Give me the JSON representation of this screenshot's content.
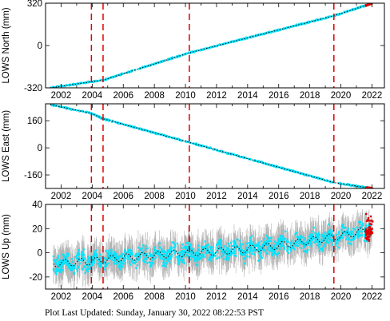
{
  "footer": {
    "label": "Plot Last Updated:",
    "value": "Sunday, January 30, 2022 08:22:53 PST"
  },
  "colors": {
    "data": "#00e5ff",
    "model": "#000000",
    "error_bar": "#b4b4b4",
    "event_line": "#e00000",
    "recent": "#e00000"
  },
  "chart_data": [
    {
      "type": "scatter",
      "ylabel": "LOWS North (mm)",
      "xlim": [
        2001.0,
        2022.8
      ],
      "ylim": [
        -320,
        320
      ],
      "yticks": [
        -320,
        0,
        320
      ],
      "xticks": [
        2002,
        2004,
        2006,
        2008,
        2010,
        2012,
        2014,
        2016,
        2018,
        2020,
        2022
      ],
      "event_lines": [
        2003.95,
        2004.7,
        2010.25,
        2019.55
      ],
      "series": [
        {
          "values": [
            {
              "x": 2001.3,
              "y": -320
            },
            {
              "x": 2003.9,
              "y": -275
            },
            {
              "x": 2004.7,
              "y": -262
            },
            {
              "x": 2010.25,
              "y": -55
            },
            {
              "x": 2019.55,
              "y": 225
            },
            {
              "x": 2022.0,
              "y": 318
            }
          ]
        }
      ],
      "grid": false
    },
    {
      "type": "scatter",
      "ylabel": "LOWS East (mm)",
      "xlim": [
        2001.0,
        2022.8
      ],
      "ylim": [
        -240,
        260
      ],
      "yticks": [
        -160,
        0,
        160
      ],
      "xticks": [
        2002,
        2004,
        2006,
        2008,
        2010,
        2012,
        2014,
        2016,
        2018,
        2020,
        2022
      ],
      "event_lines": [
        2003.95,
        2004.7,
        2010.25,
        2019.55
      ],
      "series": [
        {
          "values": [
            {
              "x": 2001.3,
              "y": 255
            },
            {
              "x": 2003.9,
              "y": 205
            },
            {
              "x": 2004.7,
              "y": 172
            },
            {
              "x": 2010.25,
              "y": 32
            },
            {
              "x": 2019.55,
              "y": -205
            },
            {
              "x": 2022.0,
              "y": -240
            }
          ]
        }
      ],
      "grid": false
    },
    {
      "type": "scatter",
      "ylabel": "LOWS Up (mm)",
      "xlim": [
        2001.0,
        2022.8
      ],
      "ylim": [
        -30,
        40
      ],
      "yticks": [
        -20,
        0,
        20,
        40
      ],
      "xticks": [
        2002,
        2004,
        2006,
        2008,
        2010,
        2012,
        2014,
        2016,
        2018,
        2020,
        2022
      ],
      "event_lines": [
        2003.95,
        2004.7,
        2010.25,
        2019.55
      ],
      "series": [
        {
          "values": [
            {
              "x": 2001.5,
              "y": -9
            },
            {
              "x": 2004.0,
              "y": -7
            },
            {
              "x": 2006.0,
              "y": -4
            },
            {
              "x": 2008.0,
              "y": -2
            },
            {
              "x": 2010.0,
              "y": 0
            },
            {
              "x": 2012.0,
              "y": 1
            },
            {
              "x": 2014.0,
              "y": 3
            },
            {
              "x": 2016.0,
              "y": 6
            },
            {
              "x": 2018.0,
              "y": 10
            },
            {
              "x": 2020.0,
              "y": 14
            },
            {
              "x": 2021.5,
              "y": 18
            },
            {
              "x": 2022.0,
              "y": 20
            }
          ]
        }
      ],
      "grid": false
    }
  ]
}
